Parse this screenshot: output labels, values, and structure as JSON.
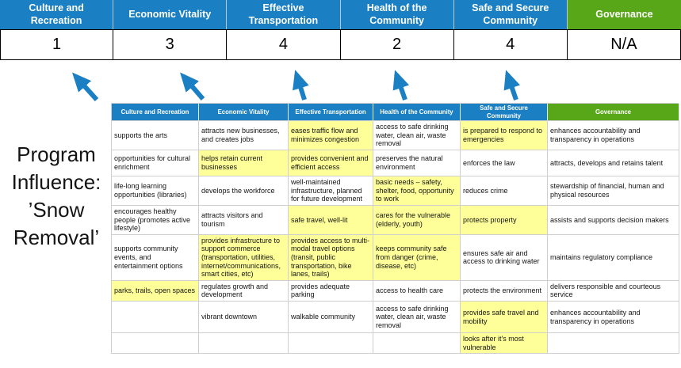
{
  "program_label": "Program Influence: ’Snow Removal’",
  "colors": {
    "blue": "#1b7fc3",
    "green": "#58a718",
    "highlight": "#ffff99"
  },
  "scoreboard": {
    "columns": [
      {
        "label": "Culture and Recreation",
        "score": "1",
        "theme": "blue"
      },
      {
        "label": "Economic Vitality",
        "score": "3",
        "theme": "blue"
      },
      {
        "label": "Effective Transportation",
        "score": "4",
        "theme": "blue"
      },
      {
        "label": "Health of the Community",
        "score": "2",
        "theme": "blue"
      },
      {
        "label": "Safe and Secure Community",
        "score": "4",
        "theme": "blue"
      },
      {
        "label": "Governance",
        "score": "N/A",
        "theme": "green"
      }
    ]
  },
  "chart_data": {
    "type": "table",
    "title": "Program Influence: ’Snow Removal’",
    "categories": [
      "Culture and Recreation",
      "Economic Vitality",
      "Effective Transportation",
      "Health of the Community",
      "Safe and Secure Community",
      "Governance"
    ],
    "scores": [
      "1",
      "3",
      "4",
      "2",
      "4",
      "N/A"
    ]
  },
  "matrix": {
    "headers": [
      {
        "label": "Culture and Recreation",
        "theme": "blue"
      },
      {
        "label": "Economic Vitality",
        "theme": "blue"
      },
      {
        "label": "Effective Transportation",
        "theme": "blue"
      },
      {
        "label": "Health of the Community",
        "theme": "blue"
      },
      {
        "label": "Safe and Secure Community",
        "theme": "blue"
      },
      {
        "label": "Governance",
        "theme": "green"
      }
    ],
    "rows": [
      [
        {
          "t": "supports the arts",
          "h": false
        },
        {
          "t": "attracts new businesses, and creates jobs",
          "h": false
        },
        {
          "t": "eases traffic flow and minimizes congestion",
          "h": true
        },
        {
          "t": "access to safe drinking water, clean air, waste removal",
          "h": false
        },
        {
          "t": "is prepared to respond to emergencies",
          "h": true
        },
        {
          "t": "enhances accountability and transparency in operations",
          "h": false
        }
      ],
      [
        {
          "t": "opportunities for cultural enrichment",
          "h": false
        },
        {
          "t": "helps retain current businesses",
          "h": true
        },
        {
          "t": "provides convenient and efficient access",
          "h": true
        },
        {
          "t": "preserves the natural environment",
          "h": false
        },
        {
          "t": "enforces the law",
          "h": false
        },
        {
          "t": "attracts, develops and retains talent",
          "h": false
        }
      ],
      [
        {
          "t": "life-long learning opportunities (libraries)",
          "h": false
        },
        {
          "t": "develops the workforce",
          "h": false
        },
        {
          "t": "well-maintained infrastructure, planned for future development",
          "h": false
        },
        {
          "t": "basic needs – safety, shelter, food, opportunity to work",
          "h": true
        },
        {
          "t": "reduces crime",
          "h": false
        },
        {
          "t": "stewardship of financial, human and physical resources",
          "h": false
        }
      ],
      [
        {
          "t": "encourages healthy people (promotes active lifestyle)",
          "h": false
        },
        {
          "t": "attracts visitors and tourism",
          "h": false
        },
        {
          "t": "safe travel, well-lit",
          "h": true
        },
        {
          "t": "cares for the vulnerable (elderly, youth)",
          "h": true
        },
        {
          "t": "protects property",
          "h": true
        },
        {
          "t": "assists and supports decision makers",
          "h": false
        }
      ],
      [
        {
          "t": "supports community events, and entertainment options",
          "h": false
        },
        {
          "t": "provides infrastructure to support commerce (transportation, utilities, internet/communications, smart cities, etc)",
          "h": true
        },
        {
          "t": "provides access to multi-modal travel options (transit, public transportation, bike lanes, trails)",
          "h": true
        },
        {
          "t": "keeps community safe from danger (crime, disease, etc)",
          "h": true
        },
        {
          "t": "ensures safe air and access to drinking water",
          "h": false
        },
        {
          "t": "maintains regulatory compliance",
          "h": false
        }
      ],
      [
        {
          "t": "parks, trails, open spaces",
          "h": true
        },
        {
          "t": "regulates growth and development",
          "h": false
        },
        {
          "t": "provides adequate parking",
          "h": false
        },
        {
          "t": "access to health care",
          "h": false
        },
        {
          "t": "protects the environment",
          "h": false
        },
        {
          "t": "delivers responsible and courteous service",
          "h": false
        }
      ],
      [
        {
          "t": "",
          "h": false
        },
        {
          "t": "vibrant downtown",
          "h": false
        },
        {
          "t": "walkable community",
          "h": false
        },
        {
          "t": "access to safe drinking water, clean air, waste removal",
          "h": false
        },
        {
          "t": "provides safe travel and mobility",
          "h": true
        },
        {
          "t": "enhances accountability and transparency in operations",
          "h": false
        }
      ],
      [
        {
          "t": "",
          "h": false
        },
        {
          "t": "",
          "h": false
        },
        {
          "t": "",
          "h": false
        },
        {
          "t": "",
          "h": false
        },
        {
          "t": "looks after it's most vulnerable",
          "h": true
        },
        {
          "t": "",
          "h": false
        }
      ]
    ]
  }
}
